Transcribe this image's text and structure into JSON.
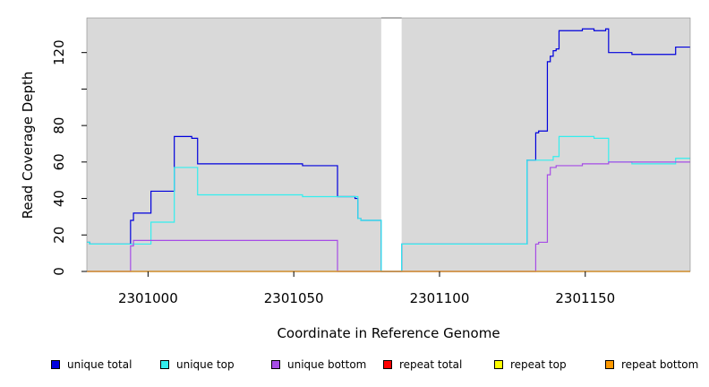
{
  "chart_data": {
    "type": "line",
    "title": "",
    "xlabel": "Coordinate in Reference Genome",
    "ylabel": "Read Coverage Depth",
    "xlim": [
      2300979,
      2301186
    ],
    "ylim": [
      0,
      139
    ],
    "x_ticks": [
      2301000,
      2301050,
      2301100,
      2301150
    ],
    "x_tick_labels": [
      "2301000",
      "2301050",
      "2301100",
      "2301150"
    ],
    "y_ticks": [
      0,
      20,
      40,
      60,
      80,
      100,
      120
    ],
    "y_tick_labels": [
      "0",
      "20",
      "40",
      "60",
      "80",
      "",
      "120"
    ],
    "grid": false,
    "background": "#d9d9d9",
    "gap_region": [
      2301080,
      2301087
    ],
    "legend_position": "bottom",
    "series": [
      {
        "name": "unique total",
        "color": "#0000dd",
        "step": true,
        "points": [
          [
            2300979,
            16
          ],
          [
            2300980,
            15
          ],
          [
            2300994,
            28
          ],
          [
            2300995,
            32
          ],
          [
            2301001,
            44
          ],
          [
            2301009,
            74
          ],
          [
            2301015,
            73
          ],
          [
            2301017,
            59
          ],
          [
            2301053,
            58
          ],
          [
            2301065,
            41
          ],
          [
            2301071,
            40
          ],
          [
            2301072,
            29
          ],
          [
            2301073,
            28
          ],
          [
            2301080,
            0
          ],
          [
            2301087,
            15
          ],
          [
            2301130,
            61
          ],
          [
            2301133,
            76
          ],
          [
            2301134,
            77
          ],
          [
            2301137,
            115
          ],
          [
            2301138,
            118
          ],
          [
            2301139,
            121
          ],
          [
            2301140,
            122
          ],
          [
            2301141,
            132
          ],
          [
            2301149,
            133
          ],
          [
            2301153,
            132
          ],
          [
            2301157,
            133
          ],
          [
            2301158,
            120
          ],
          [
            2301166,
            119
          ],
          [
            2301181,
            123
          ],
          [
            2301186,
            123
          ]
        ]
      },
      {
        "name": "unique top",
        "color": "#33eeee",
        "step": true,
        "points": [
          [
            2300979,
            16
          ],
          [
            2300980,
            15
          ],
          [
            2300995,
            15
          ],
          [
            2301001,
            27
          ],
          [
            2301009,
            57
          ],
          [
            2301017,
            42
          ],
          [
            2301053,
            41
          ],
          [
            2301065,
            41
          ],
          [
            2301072,
            29
          ],
          [
            2301073,
            28
          ],
          [
            2301080,
            0
          ],
          [
            2301087,
            15
          ],
          [
            2301130,
            61
          ],
          [
            2301139,
            63
          ],
          [
            2301141,
            74
          ],
          [
            2301153,
            73
          ],
          [
            2301158,
            60
          ],
          [
            2301166,
            59
          ],
          [
            2301181,
            62
          ],
          [
            2301186,
            62
          ]
        ]
      },
      {
        "name": "unique bottom",
        "color": "#a64ce6",
        "step": true,
        "points": [
          [
            2300979,
            0
          ],
          [
            2300994,
            14
          ],
          [
            2300995,
            17
          ],
          [
            2301065,
            0
          ],
          [
            2301133,
            15
          ],
          [
            2301134,
            16
          ],
          [
            2301137,
            53
          ],
          [
            2301138,
            57
          ],
          [
            2301140,
            58
          ],
          [
            2301149,
            59
          ],
          [
            2301158,
            60
          ],
          [
            2301186,
            60
          ]
        ]
      },
      {
        "name": "repeat total",
        "color": "#ff0000",
        "step": true,
        "points": [
          [
            2300979,
            0
          ],
          [
            2301186,
            0
          ]
        ]
      },
      {
        "name": "repeat top",
        "color": "#ffff00",
        "step": true,
        "points": [
          [
            2300979,
            0
          ],
          [
            2301186,
            0
          ]
        ]
      },
      {
        "name": "repeat bottom",
        "color": "#ff9900",
        "step": true,
        "points": [
          [
            2300979,
            0
          ],
          [
            2301186,
            0
          ]
        ]
      }
    ]
  },
  "legend": [
    {
      "label": "unique total",
      "color": "#0000dd"
    },
    {
      "label": "unique top",
      "color": "#33eeee"
    },
    {
      "label": "unique bottom",
      "color": "#a64ce6"
    },
    {
      "label": "repeat total",
      "color": "#ff0000"
    },
    {
      "label": "repeat top",
      "color": "#ffff00"
    },
    {
      "label": "repeat bottom",
      "color": "#ff9900"
    }
  ]
}
